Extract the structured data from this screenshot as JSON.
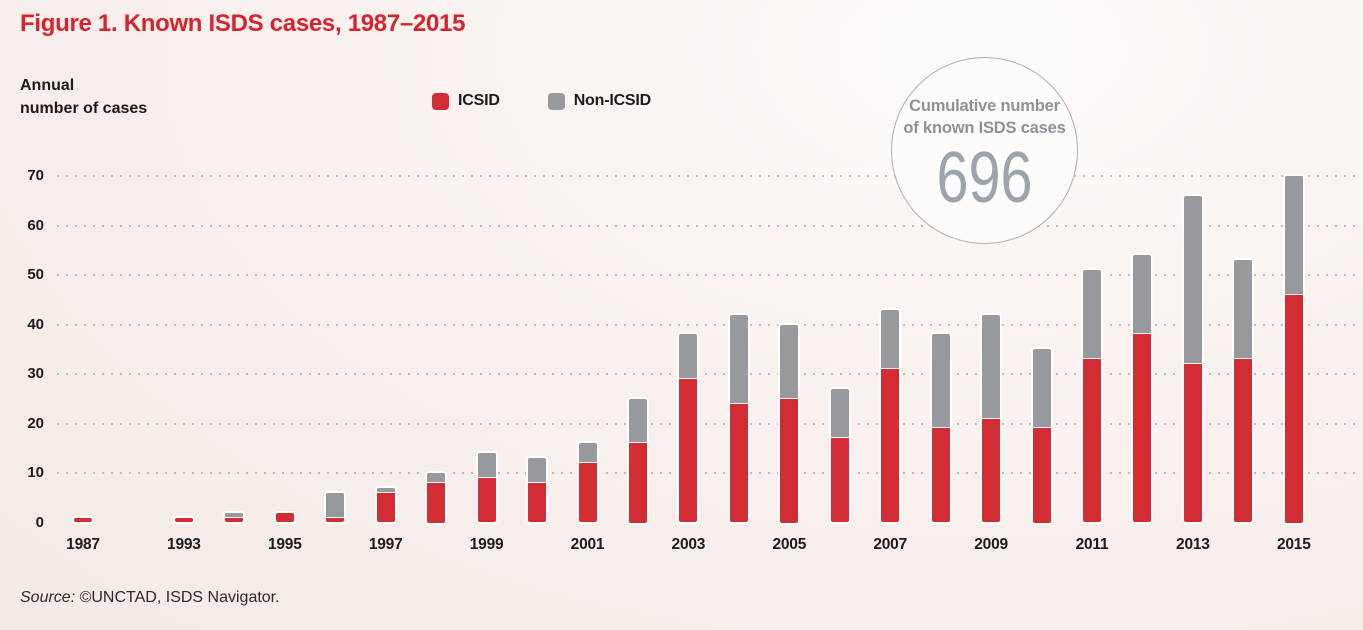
{
  "figure": {
    "title": "Figure 1. Known ISDS cases, 1987–2015",
    "y_axis_title_line1": "Annual",
    "y_axis_title_line2": "number of cases",
    "source_prefix": "Source:",
    "source_text": " ©UNCTAD, ISDS Navigator."
  },
  "badge": {
    "label_line1": "Cumulative number",
    "label_line2": "of known ISDS cases",
    "value": "696"
  },
  "legend": [
    {
      "label": "ICSID",
      "color": "#d22c34"
    },
    {
      "label": "Non-ICSID",
      "color": "#97999c"
    }
  ],
  "colors": {
    "bar_red": "#d22c34",
    "bar_gray": "#97999c",
    "title_red": "#d8232f",
    "text_dark": "#1b1b1d",
    "badge_text": "#8c9298",
    "badge_value": "#9ca3aa",
    "grid_dot": "#c4bbb4",
    "segment_separator": "rgba(255,255,255,0.95)"
  },
  "chart_data": {
    "type": "bar",
    "stacked": true,
    "title": "Figure 1. Known ISDS cases, 1987–2015",
    "ylabel": "Annual number of cases",
    "ylim": [
      0,
      70
    ],
    "y_ticks": [
      0,
      10,
      20,
      30,
      40,
      50,
      60,
      70
    ],
    "grid": "dotted-horizontal",
    "legend_position": "top",
    "series_names": [
      "ICSID",
      "Non-ICSID"
    ],
    "x_tick_labels": [
      "1987",
      "1993",
      "1995",
      "1997",
      "1999",
      "2001",
      "2003",
      "2005",
      "2007",
      "2009",
      "2011",
      "2013",
      "2015"
    ],
    "cumulative_total": 696,
    "bars": [
      {
        "year": "1987",
        "slot": 0,
        "icsid": 1,
        "non_icsid": 0
      },
      {
        "year": "1993",
        "slot": 2,
        "icsid": 1,
        "non_icsid": 0
      },
      {
        "year": "1994",
        "slot": 3,
        "icsid": 1,
        "non_icsid": 1
      },
      {
        "year": "1995",
        "slot": 4,
        "icsid": 2,
        "non_icsid": 0
      },
      {
        "year": "1996",
        "slot": 5,
        "icsid": 1,
        "non_icsid": 5
      },
      {
        "year": "1997",
        "slot": 6,
        "icsid": 6,
        "non_icsid": 1
      },
      {
        "year": "1998",
        "slot": 7,
        "icsid": 8,
        "non_icsid": 2
      },
      {
        "year": "1999",
        "slot": 8,
        "icsid": 9,
        "non_icsid": 5
      },
      {
        "year": "2000",
        "slot": 9,
        "icsid": 8,
        "non_icsid": 5
      },
      {
        "year": "2001",
        "slot": 10,
        "icsid": 12,
        "non_icsid": 4
      },
      {
        "year": "2002",
        "slot": 11,
        "icsid": 16,
        "non_icsid": 9
      },
      {
        "year": "2003",
        "slot": 12,
        "icsid": 29,
        "non_icsid": 9
      },
      {
        "year": "2004",
        "slot": 13,
        "icsid": 24,
        "non_icsid": 18
      },
      {
        "year": "2005",
        "slot": 14,
        "icsid": 25,
        "non_icsid": 15
      },
      {
        "year": "2006",
        "slot": 15,
        "icsid": 17,
        "non_icsid": 10
      },
      {
        "year": "2007",
        "slot": 16,
        "icsid": 31,
        "non_icsid": 12
      },
      {
        "year": "2008",
        "slot": 17,
        "icsid": 19,
        "non_icsid": 19
      },
      {
        "year": "2009",
        "slot": 18,
        "icsid": 21,
        "non_icsid": 21
      },
      {
        "year": "2010",
        "slot": 19,
        "icsid": 19,
        "non_icsid": 16
      },
      {
        "year": "2011",
        "slot": 20,
        "icsid": 33,
        "non_icsid": 18
      },
      {
        "year": "2012",
        "slot": 21,
        "icsid": 38,
        "non_icsid": 16
      },
      {
        "year": "2013",
        "slot": 22,
        "icsid": 32,
        "non_icsid": 34
      },
      {
        "year": "2014",
        "slot": 23,
        "icsid": 33,
        "non_icsid": 20
      },
      {
        "year": "2015",
        "slot": 24,
        "icsid": 46,
        "non_icsid": 24
      }
    ]
  }
}
